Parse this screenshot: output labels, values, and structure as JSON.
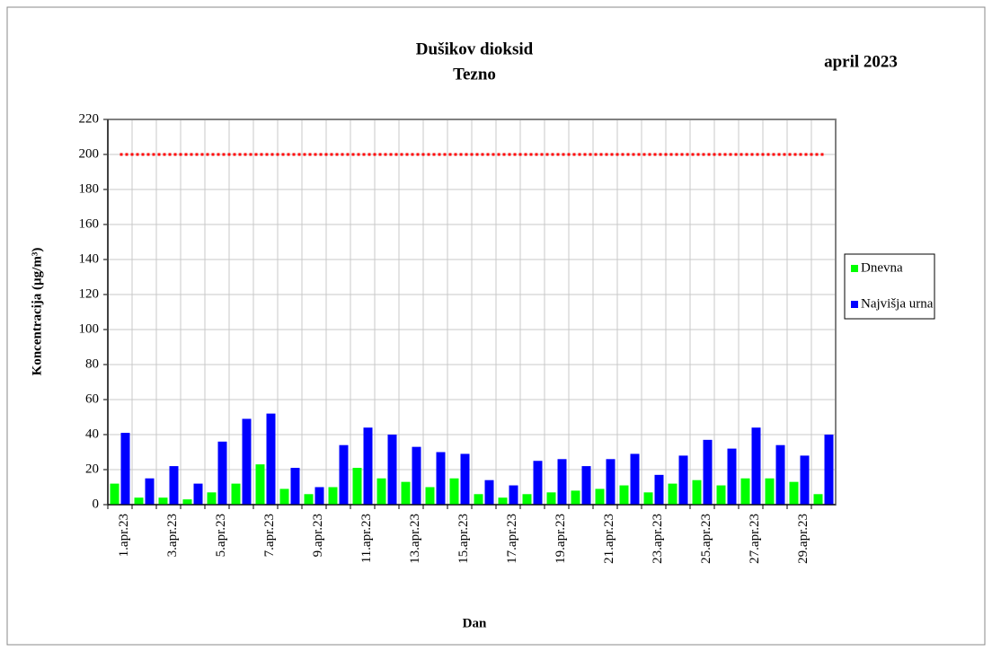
{
  "chart_data": {
    "type": "bar",
    "title": "Dušikov dioksid",
    "subtitle": "Tezno",
    "period": "april 2023",
    "x_label": "Dan",
    "y_label": "Koncentracija  (µg/m³)",
    "categories": [
      "1.apr.23",
      null,
      "3.apr.23",
      null,
      "5.apr.23",
      null,
      "7.apr.23",
      null,
      "9.apr.23",
      null,
      "11.apr.23",
      null,
      "13.apr.23",
      null,
      "15.apr.23",
      null,
      "17.apr.23",
      null,
      "19.apr.23",
      null,
      "21.apr.23",
      null,
      "23.apr.23",
      null,
      "25.apr.23",
      null,
      "27.apr.23",
      null,
      "29.apr.23",
      null
    ],
    "series": [
      {
        "name": "Dnevna",
        "color": "#00ff00",
        "values": [
          12,
          4,
          4,
          3,
          7,
          12,
          23,
          9,
          6,
          10,
          21,
          15,
          13,
          10,
          15,
          6,
          4,
          6,
          7,
          8,
          9,
          11,
          7,
          12,
          14,
          11,
          15,
          15,
          13,
          6
        ]
      },
      {
        "name": "Najvišja urna",
        "color": "#0000ff",
        "values": [
          41,
          15,
          22,
          12,
          36,
          49,
          52,
          21,
          10,
          34,
          44,
          40,
          33,
          30,
          29,
          14,
          11,
          25,
          26,
          22,
          26,
          29,
          17,
          28,
          37,
          32,
          44,
          34,
          28,
          40
        ]
      }
    ],
    "limit": 200,
    "limit_color": "#ff0000",
    "ylim": [
      0,
      220
    ],
    "yticks": [
      0,
      20,
      40,
      60,
      80,
      100,
      120,
      140,
      160,
      180,
      200,
      220
    ],
    "grid": true,
    "legend": "right"
  }
}
